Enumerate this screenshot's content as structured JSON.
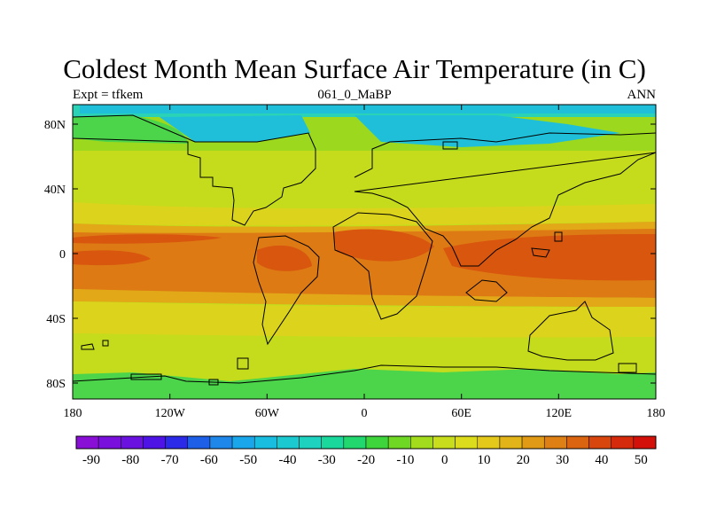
{
  "title": "Coldest Month Mean Surface Air Temperature (in C)",
  "left_label": "Expt = tfkem",
  "center_label": "061_0_MaBP",
  "right_label": "ANN",
  "lat_ticks": [
    "80N",
    "40N",
    "0",
    "40S",
    "80S"
  ],
  "lon_ticks": [
    "180",
    "120W",
    "60W",
    "0",
    "60E",
    "120E",
    "180"
  ],
  "colorbar": {
    "labels": [
      "-90",
      "-80",
      "-70",
      "-60",
      "-50",
      "-40",
      "-30",
      "-20",
      "-10",
      "0",
      "10",
      "20",
      "30",
      "40",
      "50"
    ],
    "colors": [
      "#8a0fd6",
      "#7a10dc",
      "#6a12e0",
      "#4e14e6",
      "#2a2ae8",
      "#1e5fe8",
      "#1f86ea",
      "#1aa6ea",
      "#19bde0",
      "#1bc9d0",
      "#1dd3c0",
      "#1ad89c",
      "#22d86e",
      "#3ed43c",
      "#6ed824",
      "#a2dc1c",
      "#c8de1c",
      "#dcdc1c",
      "#e4c81a",
      "#e2b418",
      "#e09a16",
      "#de8014",
      "#da6410",
      "#d8460e",
      "#d62a0c",
      "#d4100a"
    ]
  },
  "map_colors": {
    "polar": "#1fbfd9",
    "cold": "#2bd3b6",
    "cool": "#4cd44a",
    "mild": "#9cd81e",
    "temperate": "#c4dc1c",
    "warm": "#dcd41c",
    "hot": "#e2a818",
    "tropical": "#dd7a14",
    "equatorial": "#d8560e",
    "outline": "#000000"
  }
}
